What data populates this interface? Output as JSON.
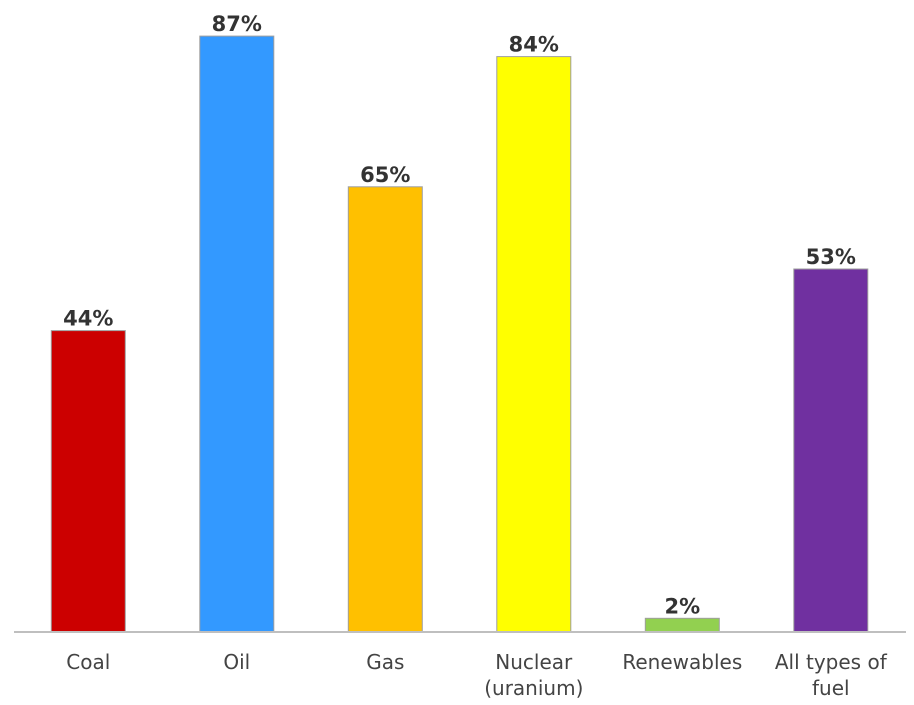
{
  "chart_data": {
    "type": "bar",
    "categories": [
      [
        "Coal"
      ],
      [
        "Oil"
      ],
      [
        "Gas"
      ],
      [
        "Nuclear",
        "(uranium)"
      ],
      [
        "Renewables"
      ],
      [
        "All types of",
        "fuel"
      ]
    ],
    "values": [
      44,
      87,
      65,
      84,
      2,
      53
    ],
    "value_labels": [
      "44%",
      "87%",
      "65%",
      "84%",
      "2%",
      "53%"
    ],
    "colors": [
      "#cc0000",
      "#3399ff",
      "#ffc000",
      "#ffff00",
      "#92d050",
      "#7030a0"
    ],
    "title": "",
    "xlabel": "",
    "ylabel": "",
    "ylim": [
      0,
      100
    ],
    "grid": false,
    "legend": "none"
  }
}
